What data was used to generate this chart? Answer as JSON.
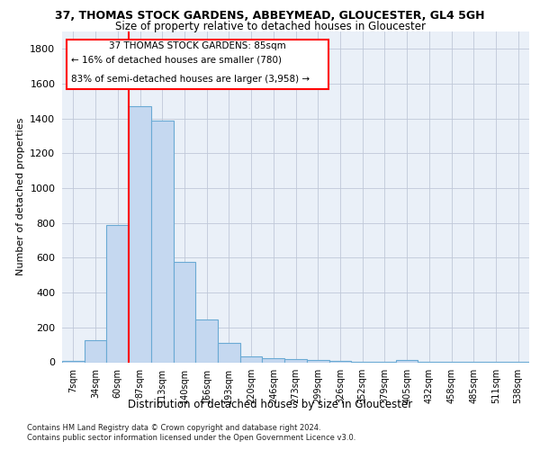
{
  "title": "37, THOMAS STOCK GARDENS, ABBEYMEAD, GLOUCESTER, GL4 5GH",
  "subtitle": "Size of property relative to detached houses in Gloucester",
  "xlabel": "Distribution of detached houses by size in Gloucester",
  "ylabel": "Number of detached properties",
  "categories": [
    "7sqm",
    "34sqm",
    "60sqm",
    "87sqm",
    "113sqm",
    "140sqm",
    "166sqm",
    "193sqm",
    "220sqm",
    "246sqm",
    "273sqm",
    "299sqm",
    "326sqm",
    "352sqm",
    "379sqm",
    "405sqm",
    "432sqm",
    "458sqm",
    "485sqm",
    "511sqm",
    "538sqm"
  ],
  "values": [
    10,
    125,
    790,
    1470,
    1390,
    575,
    245,
    110,
    35,
    25,
    20,
    15,
    10,
    5,
    5,
    15,
    2,
    2,
    2,
    2,
    2
  ],
  "bar_color": "#c5d8f0",
  "bar_edge_color": "#6aaad4",
  "red_line_index": 2.5,
  "property_line_label": "37 THOMAS STOCK GARDENS: 85sqm",
  "annotation_line1": "← 16% of detached houses are smaller (780)",
  "annotation_line2": "83% of semi-detached houses are larger (3,958) →",
  "ylim": [
    0,
    1900
  ],
  "yticks": [
    0,
    200,
    400,
    600,
    800,
    1000,
    1200,
    1400,
    1600,
    1800
  ],
  "footer_line1": "Contains HM Land Registry data © Crown copyright and database right 2024.",
  "footer_line2": "Contains public sector information licensed under the Open Government Licence v3.0.",
  "plot_bg_color": "#eaf0f8",
  "grid_color": "#c0c8d8"
}
